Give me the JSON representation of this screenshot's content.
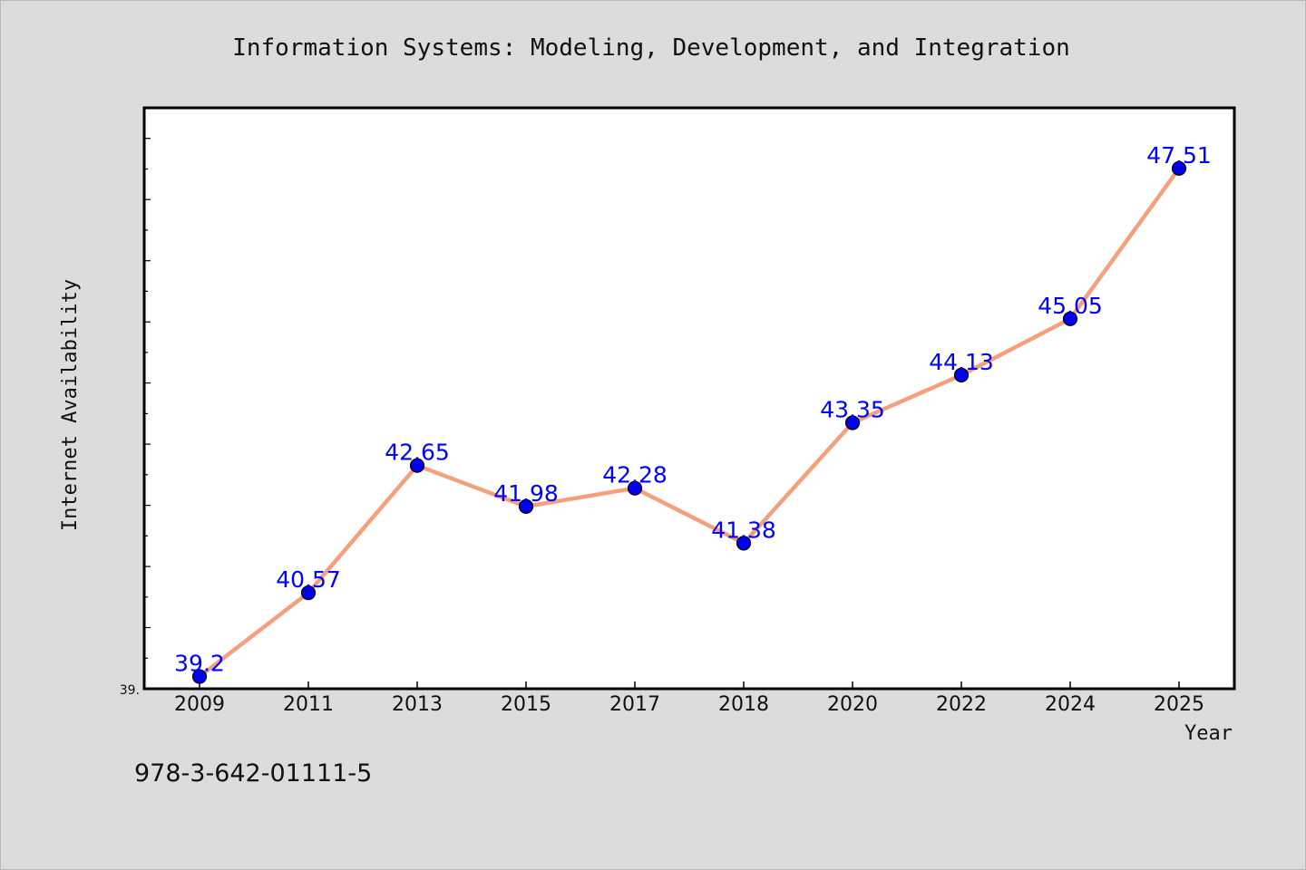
{
  "chart_data": {
    "type": "line",
    "title": "Information Systems: Modeling, Development, and Integration",
    "xlabel": "Year",
    "ylabel": "Internet Availability",
    "categories": [
      "2009",
      "2011",
      "2013",
      "2015",
      "2017",
      "2018",
      "2020",
      "2022",
      "2024",
      "2025"
    ],
    "series": [
      {
        "values": [
          39.2,
          40.57,
          42.65,
          41.98,
          42.28,
          41.38,
          43.35,
          44.13,
          45.05,
          47.51
        ],
        "line_color": "#f4a07c",
        "marker_color": "#0000ee"
      }
    ],
    "data_labels": [
      "39.2",
      "40.57",
      "42.65",
      "41.98",
      "42.28",
      "41.38",
      "43.35",
      "44.13",
      "45.05",
      "47.51"
    ],
    "ytick_labels": [
      "39."
    ],
    "ylim": [
      39.0,
      48.5
    ],
    "grid": false,
    "legend": "none",
    "colors": {
      "background": "#dcdcdc",
      "plot_background": "#ffffff",
      "data_label": "#0000ff"
    }
  },
  "footer_text": "978-3-642-01111-5"
}
